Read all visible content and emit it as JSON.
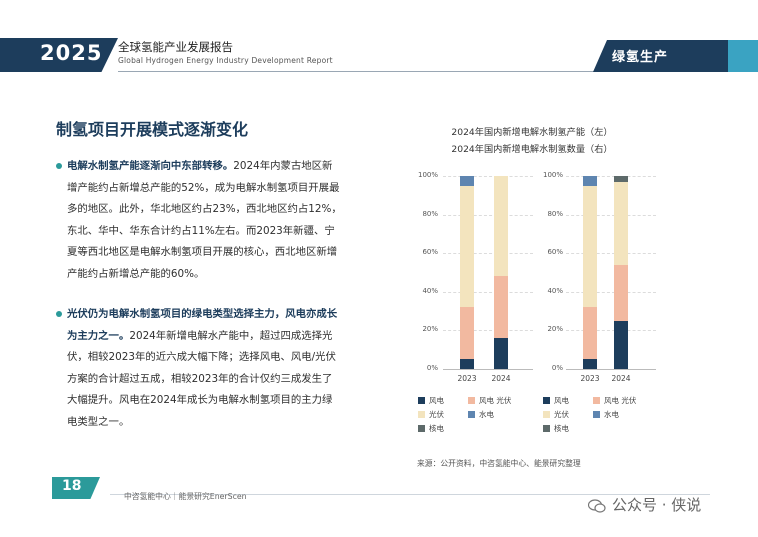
{
  "header": {
    "year": "2025",
    "title_cn": "全球氢能产业发展报告",
    "title_en": "Global Hydrogen Energy Industry Development Report",
    "section": "绿氢生产"
  },
  "section_heading": "制氢项目开展模式逐渐变化",
  "paragraph1": {
    "bold": "电解水制氢产能逐渐向中东部转移。",
    "text": "2024年内蒙古地区新增产能约占新增总产能的52%，成为电解水制氢项目开展最多的地区。此外，华北地区约占23%，西北地区约占12%，东北、华中、华东合计约占11%左右。而2023年新疆、宁夏等西北地区是电解水制氢项目开展的核心，西北地区新增产能约占新增总产能的60%。"
  },
  "paragraph2": {
    "bold": "光伏仍为电解水制氢项目的绿电类型选择主力，风电亦成长为主力之一。",
    "text": "2024年新增电解水产能中，超过四成选择光伏，相较2023年的近六成大幅下降；选择风电、风电/光伏方案的合计超过五成，相较2023年的合计仅约三成发生了大幅提升。风电在2024年成长为电解水制氢项目的主力绿电类型之一。"
  },
  "chart_data": [
    {
      "type": "bar",
      "stacked": true,
      "title": "2024年国内新增电解水制氢产能（左）",
      "categories": [
        "2023",
        "2024"
      ],
      "ylim": [
        0,
        100
      ],
      "yticks": [
        "0%",
        "20%",
        "40%",
        "60%",
        "80%",
        "100%"
      ],
      "series": [
        {
          "name": "风电",
          "values": [
            5,
            16
          ]
        },
        {
          "name": "风电 光伏",
          "values": [
            27,
            32
          ]
        },
        {
          "name": "光伏",
          "values": [
            63,
            52
          ]
        },
        {
          "name": "水电",
          "values": [
            5,
            0
          ]
        },
        {
          "name": "核电",
          "values": [
            0,
            0
          ]
        }
      ]
    },
    {
      "type": "bar",
      "stacked": true,
      "title": "2024年国内新增电解水制氢数量（右）",
      "categories": [
        "2023",
        "2024"
      ],
      "ylim": [
        0,
        100
      ],
      "yticks": [
        "0%",
        "20%",
        "40%",
        "60%",
        "80%",
        "100%"
      ],
      "series": [
        {
          "name": "风电",
          "values": [
            5,
            25
          ]
        },
        {
          "name": "风电 光伏",
          "values": [
            27,
            29
          ]
        },
        {
          "name": "光伏",
          "values": [
            63,
            43
          ]
        },
        {
          "name": "水电",
          "values": [
            5,
            0
          ]
        },
        {
          "name": "核电",
          "values": [
            0,
            3
          ]
        }
      ]
    }
  ],
  "colors": {
    "风电": "#1d3d5c",
    "风电 光伏": "#f2b9a0",
    "光伏": "#f3e4be",
    "水电": "#5e85b0",
    "核电": "#5d6a6a",
    "navy": "#1d3d5c",
    "teal": "#2b9a9a"
  },
  "source": "来源：公开资料，中咨氢能中心、能景研究整理",
  "footer": {
    "page": "18",
    "org": "中咨氢能中心｜能景研究EnerScen",
    "watermark": "公众号 · 侠说"
  }
}
